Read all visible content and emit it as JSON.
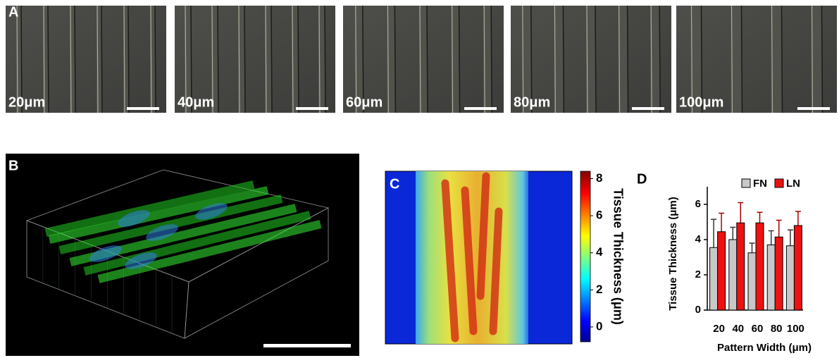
{
  "panel_a": {
    "label": "A",
    "images": [
      "20μm",
      "40μm",
      "60μm",
      "80μm",
      "100μm"
    ]
  },
  "panel_b": {
    "label": "B"
  },
  "panel_c": {
    "label": "C",
    "colorbar": {
      "label": "Tissue Thickness (μm)",
      "lim": [
        -0.8,
        8.4
      ],
      "ticks": [
        0,
        2,
        4,
        6,
        8
      ]
    }
  },
  "chart_data": {
    "type": "bar",
    "label": "D",
    "xlabel": "Pattern Width (μm)",
    "ylabel": "Tissue Thickness (μm)",
    "categories": [
      "20",
      "40",
      "60",
      "80",
      "100"
    ],
    "series": [
      {
        "name": "FN",
        "color": "#c8c8c8",
        "values": [
          3.55,
          4.0,
          3.25,
          3.7,
          3.65
        ],
        "errors": [
          1.6,
          0.7,
          0.55,
          0.8,
          0.9
        ]
      },
      {
        "name": "LN",
        "color": "#ee1111",
        "values": [
          4.45,
          4.95,
          4.95,
          4.15,
          4.8
        ],
        "errors": [
          1.05,
          1.15,
          0.6,
          0.95,
          0.8
        ]
      }
    ],
    "ylim": [
      0,
      7
    ],
    "yticks": [
      0,
      2,
      4,
      6
    ],
    "legend": "top"
  }
}
